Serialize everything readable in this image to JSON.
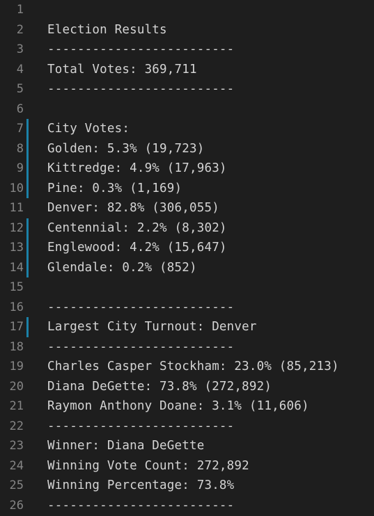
{
  "editor": {
    "lines": [
      {
        "num": "1",
        "text": "",
        "modified": false
      },
      {
        "num": "2",
        "text": "Election Results",
        "modified": false
      },
      {
        "num": "3",
        "text": "-------------------------",
        "modified": false
      },
      {
        "num": "4",
        "text": "Total Votes: 369,711",
        "modified": false
      },
      {
        "num": "5",
        "text": "-------------------------",
        "modified": false
      },
      {
        "num": "6",
        "text": "",
        "modified": false
      },
      {
        "num": "7",
        "text": "City Votes:",
        "modified": true
      },
      {
        "num": "8",
        "text": "Golden: 5.3% (19,723)",
        "modified": true
      },
      {
        "num": "9",
        "text": "Kittredge: 4.9% (17,963)",
        "modified": true
      },
      {
        "num": "10",
        "text": "Pine: 0.3% (1,169)",
        "modified": true
      },
      {
        "num": "11",
        "text": "Denver: 82.8% (306,055)",
        "modified": false
      },
      {
        "num": "12",
        "text": "Centennial: 2.2% (8,302)",
        "modified": true
      },
      {
        "num": "13",
        "text": "Englewood: 4.2% (15,647)",
        "modified": true
      },
      {
        "num": "14",
        "text": "Glendale: 0.2% (852)",
        "modified": true
      },
      {
        "num": "15",
        "text": "",
        "modified": false
      },
      {
        "num": "16",
        "text": "-------------------------",
        "modified": false
      },
      {
        "num": "17",
        "text": "Largest City Turnout: Denver",
        "modified": true
      },
      {
        "num": "18",
        "text": "-------------------------",
        "modified": false
      },
      {
        "num": "19",
        "text": "Charles Casper Stockham: 23.0% (85,213)",
        "modified": false
      },
      {
        "num": "20",
        "text": "Diana DeGette: 73.8% (272,892)",
        "modified": false
      },
      {
        "num": "21",
        "text": "Raymon Anthony Doane: 3.1% (11,606)",
        "modified": false
      },
      {
        "num": "22",
        "text": "-------------------------",
        "modified": false
      },
      {
        "num": "23",
        "text": "Winner: Diana DeGette",
        "modified": false
      },
      {
        "num": "24",
        "text": "Winning Vote Count: 272,892",
        "modified": false
      },
      {
        "num": "25",
        "text": "Winning Percentage: 73.8%",
        "modified": false
      },
      {
        "num": "26",
        "text": "-------------------------",
        "modified": false
      }
    ],
    "colors": {
      "background": "#1e1e1e",
      "line_number": "#858585",
      "text": "#d4d4d4",
      "modified_marker": "#1b81a8"
    }
  }
}
